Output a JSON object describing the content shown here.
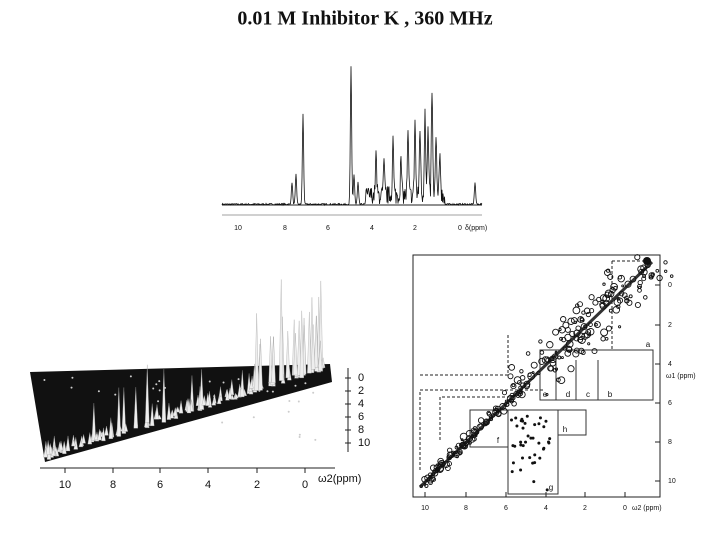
{
  "header": {
    "title": "0.01 M Inhibitor K , 360 MHz"
  },
  "spectrum_1d": {
    "axis_labels": [
      "10",
      "8",
      "6",
      "4",
      "2",
      "0"
    ],
    "axis_title": "δ(ppm)"
  },
  "spectrum_3d": {
    "right_labels": [
      "0",
      "2",
      "4",
      "6",
      "8",
      "10"
    ],
    "bottom_labels": [
      "10",
      "8",
      "6",
      "4",
      "2",
      "0"
    ],
    "bottom_title": "ω2(ppm)"
  },
  "spectrum_2d": {
    "right_labels": [
      "0",
      "2",
      "4",
      "6",
      "8",
      "10"
    ],
    "right_title": "ω1 (ppm)",
    "bottom_labels": [
      "10",
      "8",
      "6",
      "4",
      "2",
      "0"
    ],
    "bottom_title": "ω2 (ppm)",
    "box_labels": [
      "a",
      "b",
      "c",
      "d",
      "e",
      "f",
      "g",
      "h"
    ]
  }
}
